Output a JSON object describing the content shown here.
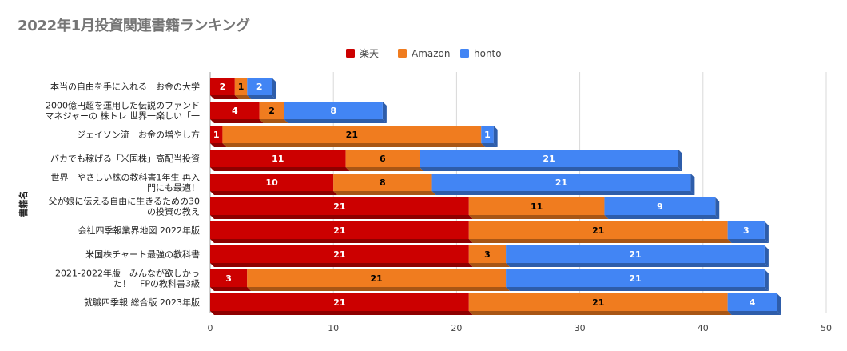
{
  "chart_data": {
    "type": "bar",
    "orientation": "horizontal",
    "stacked": true,
    "title": "2022年1月投資関連書籍ランキング",
    "xlabel": "",
    "ylabel": "書籍名",
    "xlim": [
      0,
      50
    ],
    "xticks": [
      "0",
      "10",
      "20",
      "30",
      "40",
      "50"
    ],
    "grid": true,
    "legend_position": "top",
    "categories": [
      [
        "本当の自由を手に入れる　お金の大学"
      ],
      [
        "2000億円超を運用した伝説のファンド",
        "マネジャーの 株トレ 世界一楽しい「一"
      ],
      [
        "ジェイソン流　お金の増やし方"
      ],
      [
        "バカでも稼げる「米国株」高配当投資"
      ],
      [
        "世界一やさしい株の教科書1年生 再入",
        "門にも最適！"
      ],
      [
        "父が娘に伝える自由に生きるための30",
        "の投資の教え"
      ],
      [
        "会社四季報業界地図 2022年版"
      ],
      [
        "米国株チャート最強の教科書"
      ],
      [
        "2021-2022年版　みんなが欲しかっ",
        "た！　FPの教科書3級"
      ],
      [
        "就職四季報 総合版 2023年版"
      ]
    ],
    "series": [
      {
        "name": "楽天",
        "color": "#cc0000",
        "side_color": "#8e0000",
        "label_color": "#ffffff",
        "values": [
          2,
          4,
          1,
          11,
          10,
          21,
          21,
          21,
          3,
          21
        ]
      },
      {
        "name": "Amazon",
        "color": "#f07c1f",
        "side_color": "#a85615",
        "label_color": "#000000",
        "values": [
          1,
          2,
          21,
          6,
          8,
          11,
          21,
          3,
          21,
          21
        ]
      },
      {
        "name": "honto",
        "color": "#4285f4",
        "side_color": "#2e5daa",
        "label_color": "#ffffff",
        "values": [
          2,
          8,
          1,
          21,
          21,
          9,
          3,
          21,
          21,
          4
        ]
      }
    ]
  }
}
